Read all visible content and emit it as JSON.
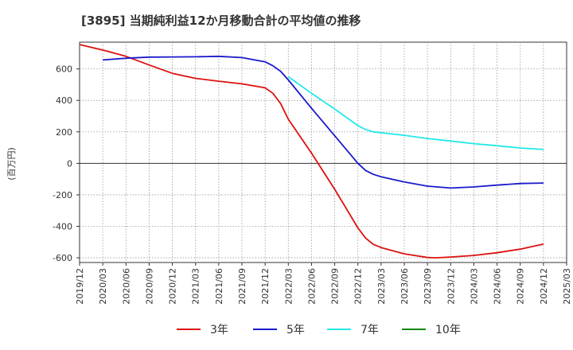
{
  "chart_data": {
    "type": "line",
    "title": "[3895]  当期純利益12か月移動合計の平均値の推移",
    "ylabel": "(百万円)",
    "xlabel": "",
    "ylim": [
      -630,
      770
    ],
    "grid": true,
    "legend_position": "bottom",
    "y_ticks": [
      600,
      400,
      200,
      0,
      -200,
      -400,
      -600
    ],
    "x_ticks": [
      "2019/12",
      "2020/03",
      "2020/06",
      "2020/09",
      "2020/12",
      "2021/03",
      "2021/06",
      "2021/09",
      "2021/12",
      "2022/03",
      "2022/06",
      "2022/09",
      "2022/12",
      "2023/03",
      "2023/06",
      "2023/09",
      "2023/12",
      "2024/03",
      "2024/06",
      "2024/09",
      "2024/12",
      "2025/03"
    ],
    "series": [
      {
        "name": "3年",
        "color": "#dd1111",
        "points": [
          [
            "2019/12",
            755
          ],
          [
            "2020/03",
            720
          ],
          [
            "2020/06",
            680
          ],
          [
            "2020/09",
            625
          ],
          [
            "2020/12",
            572
          ],
          [
            "2021/03",
            540
          ],
          [
            "2021/06",
            522
          ],
          [
            "2021/09",
            505
          ],
          [
            "2021/12",
            480
          ],
          [
            "2022/01",
            445
          ],
          [
            "2022/02",
            380
          ],
          [
            "2022/03",
            280
          ],
          [
            "2022/06",
            65
          ],
          [
            "2022/09",
            -165
          ],
          [
            "2022/12",
            -410
          ],
          [
            "2023/01",
            -475
          ],
          [
            "2023/02",
            -515
          ],
          [
            "2023/03",
            -535
          ],
          [
            "2023/06",
            -575
          ],
          [
            "2023/09",
            -598
          ],
          [
            "2023/10",
            -600
          ],
          [
            "2023/12",
            -595
          ],
          [
            "2024/03",
            -585
          ],
          [
            "2024/06",
            -568
          ],
          [
            "2024/09",
            -545
          ],
          [
            "2024/12",
            -513
          ]
        ]
      },
      {
        "name": "5年",
        "color": "#1a1acc",
        "points": [
          [
            "2020/03",
            657
          ],
          [
            "2020/06",
            668
          ],
          [
            "2020/09",
            675
          ],
          [
            "2020/12",
            676
          ],
          [
            "2021/03",
            677
          ],
          [
            "2021/06",
            680
          ],
          [
            "2021/09",
            672
          ],
          [
            "2021/12",
            645
          ],
          [
            "2022/01",
            620
          ],
          [
            "2022/02",
            585
          ],
          [
            "2022/03",
            530
          ],
          [
            "2022/06",
            350
          ],
          [
            "2022/09",
            175
          ],
          [
            "2022/12",
            0
          ],
          [
            "2023/01",
            -45
          ],
          [
            "2023/02",
            -70
          ],
          [
            "2023/03",
            -85
          ],
          [
            "2023/06",
            -118
          ],
          [
            "2023/09",
            -145
          ],
          [
            "2023/12",
            -157
          ],
          [
            "2024/03",
            -150
          ],
          [
            "2024/06",
            -138
          ],
          [
            "2024/09",
            -128
          ],
          [
            "2024/12",
            -125
          ]
        ]
      },
      {
        "name": "7年",
        "color": "#22e8e8",
        "points": [
          [
            "2022/03",
            550
          ],
          [
            "2022/06",
            445
          ],
          [
            "2022/09",
            345
          ],
          [
            "2022/12",
            240
          ],
          [
            "2023/01",
            215
          ],
          [
            "2023/02",
            200
          ],
          [
            "2023/03",
            195
          ],
          [
            "2023/06",
            178
          ],
          [
            "2023/09",
            158
          ],
          [
            "2023/12",
            142
          ],
          [
            "2024/03",
            125
          ],
          [
            "2024/06",
            112
          ],
          [
            "2024/09",
            98
          ],
          [
            "2024/12",
            88
          ]
        ]
      },
      {
        "name": "10年",
        "color": "#118811",
        "points": []
      }
    ]
  }
}
